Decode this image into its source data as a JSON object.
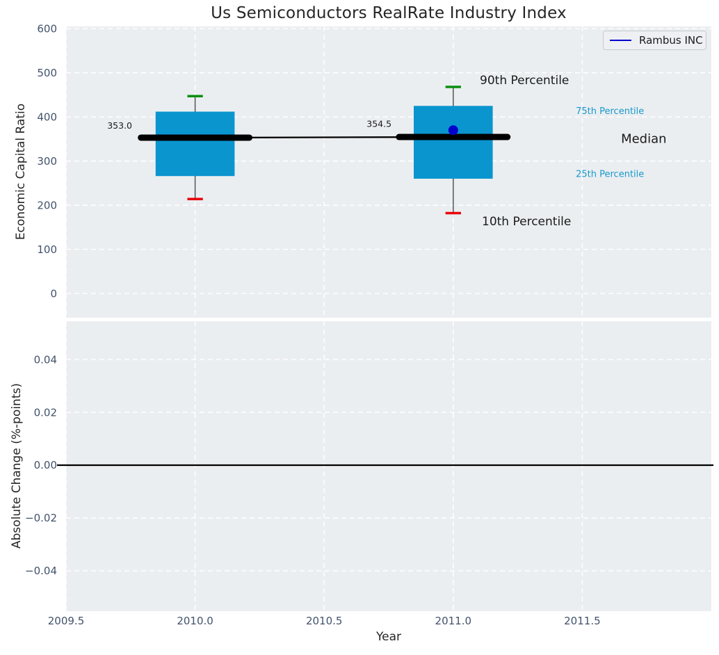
{
  "chart_data": [
    {
      "type": "box",
      "title": "Us Semiconductors RealRate Industry Index",
      "ylabel": "Economic Capital Ratio",
      "xlim": [
        2009.5,
        2012.0
      ],
      "ylim": [
        -55,
        605
      ],
      "grid": true,
      "legend_position": "upper right",
      "yticks": [
        {
          "v": 600,
          "label": "600"
        },
        {
          "v": 500,
          "label": "500"
        },
        {
          "v": 400,
          "label": "400"
        },
        {
          "v": 300,
          "label": "300"
        },
        {
          "v": 200,
          "label": "200"
        },
        {
          "v": 100,
          "label": "100"
        },
        {
          "v": 0,
          "label": "0"
        }
      ],
      "boxes": [
        {
          "x": 2010.0,
          "whisker_low": 214,
          "q1": 266,
          "median": 353.0,
          "q3": 412,
          "whisker_high": 447,
          "median_label": "353.0"
        },
        {
          "x": 2011.0,
          "whisker_low": 182,
          "q1": 260,
          "median": 354.5,
          "q3": 425,
          "whisker_high": 468,
          "median_label": "354.5"
        }
      ],
      "median_trend": {
        "x": [
          2010.0,
          2011.0
        ],
        "y": [
          353.0,
          354.5
        ]
      },
      "series": [
        {
          "name": "Rambus INC",
          "x": [
            2011.0
          ],
          "y": [
            370
          ],
          "marker": "circle",
          "color": "#0000cd"
        }
      ],
      "annotations": [
        {
          "text": "353.0",
          "x": 2009.756,
          "y": 380,
          "ha": "end",
          "size": 12.5,
          "color": "#1a1a1a"
        },
        {
          "text": "354.5",
          "x": 2010.761,
          "y": 384,
          "ha": "end",
          "size": 12.5,
          "color": "#1a1a1a"
        },
        {
          "text": "90th Percentile",
          "x": 2011.103,
          "y": 484,
          "ha": "start",
          "size": 17,
          "color": "#1a1a1a"
        },
        {
          "text": "10th Percentile",
          "x": 2011.111,
          "y": 164,
          "ha": "start",
          "size": 17,
          "color": "#1a1a1a"
        },
        {
          "text": "75th Percentile",
          "x": 2011.475,
          "y": 414,
          "ha": "start",
          "size": 13,
          "color": "#1899cc"
        },
        {
          "text": "Median",
          "x": 2011.65,
          "y": 351,
          "ha": "start",
          "size": 18,
          "color": "#1a1a1a"
        },
        {
          "text": "25th Percentile",
          "x": 2011.475,
          "y": 271,
          "ha": "start",
          "size": 13,
          "color": "#1899cc"
        }
      ]
    },
    {
      "type": "line",
      "ylabel": "Absolute Change (%-points)",
      "xlabel": "Year",
      "xlim": [
        2009.5,
        2012.0
      ],
      "ylim": [
        -0.0553,
        0.0545
      ],
      "grid": true,
      "zero_line": 0.0,
      "yticks": [
        {
          "v": 0.04,
          "label": "0.04"
        },
        {
          "v": 0.02,
          "label": "0.02"
        },
        {
          "v": 0.0,
          "label": "0.00"
        },
        {
          "v": -0.02,
          "label": "−0.02"
        },
        {
          "v": -0.04,
          "label": "−0.04"
        }
      ],
      "xticks": [
        {
          "v": 2009.5,
          "label": "2009.5"
        },
        {
          "v": 2010.0,
          "label": "2010.0"
        },
        {
          "v": 2010.5,
          "label": "2010.5"
        },
        {
          "v": 2011.0,
          "label": "2011.0"
        },
        {
          "v": 2011.5,
          "label": "2011.5"
        }
      ]
    }
  ],
  "style": {
    "plot_bg": "#ebeef1",
    "grid_color": "#ffffff",
    "tick_color": "#42526b",
    "box_color": "#0a95cf",
    "cap_high_color": "#0a8f0f",
    "cap_low_color": "#e8000b",
    "whisker_color": "#555555",
    "median_color": "#000000",
    "zero_line_color": "#000000",
    "point_color": "#0000cd"
  }
}
